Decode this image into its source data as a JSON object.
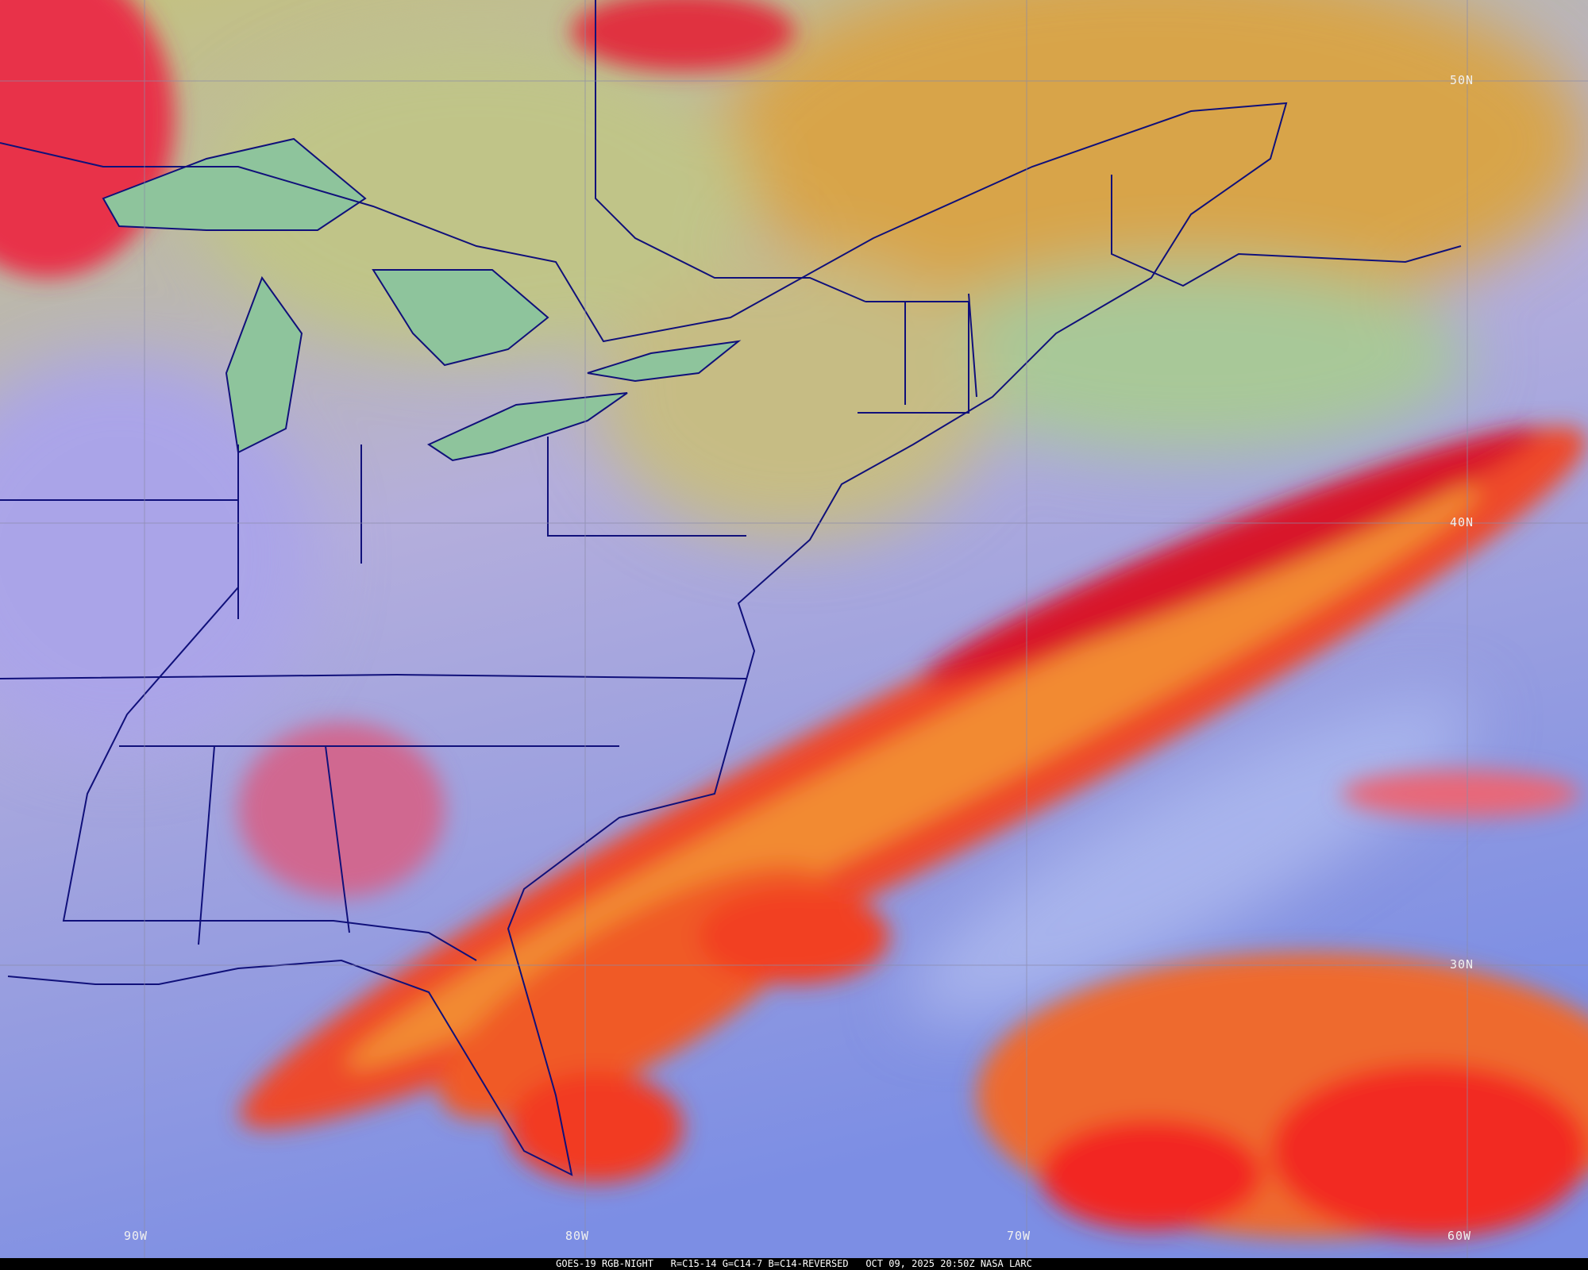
{
  "map": {
    "satellite": "GOES-19",
    "product": "RGB-NIGHT",
    "colors": {
      "cloud_red": "#e8202a",
      "cloud_orange": "#f07a2a",
      "land_yellow": "#c8c27a",
      "ocean_blue": "#8a98e6",
      "lavender": "#b0a8e4",
      "border": "#10107a",
      "grid": "#8a8aa8"
    },
    "lat_labels": [
      "50N",
      "40N",
      "30N"
    ],
    "lon_labels": [
      "90W",
      "80W",
      "70W",
      "60W"
    ]
  },
  "caption": {
    "sat": "GOES-19 RGB-NIGHT",
    "channels": "R=C15-14 G=C14-7 B=C14-REVERSED",
    "timestamp": "OCT 09, 2025 20:50Z NASA LARC"
  }
}
